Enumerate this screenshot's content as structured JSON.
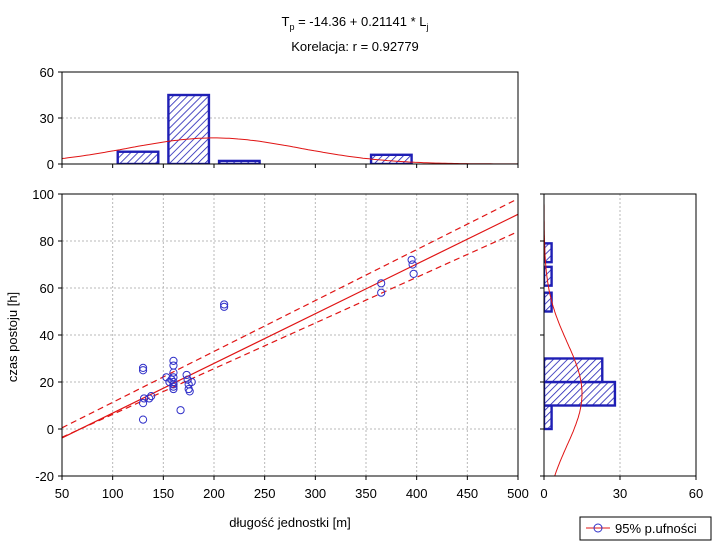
{
  "chart_data": {
    "type": "scatter",
    "title_line1": {
      "prefix": "T",
      "prefix_sub": "p",
      "body": " = -14.36 + 0.21141 * L",
      "body_sub": "j"
    },
    "title_line2": "Korelacja: r =   0.92779",
    "xlabel": "długość jednostki [m]",
    "ylabel": "czas postoju [h]",
    "xlim": [
      50,
      500
    ],
    "ylim": [
      -20,
      100
    ],
    "xticks": [
      50,
      100,
      150,
      200,
      250,
      300,
      350,
      400,
      450,
      500
    ],
    "yticks": [
      -20,
      0,
      20,
      40,
      60,
      80,
      100
    ],
    "grid": true,
    "regression": {
      "intercept": -14.36,
      "slope": 0.21141
    },
    "confidence_band": {
      "label": "95% p.ufności",
      "lower_at_50": -3.5,
      "upper_at_50": 0.5,
      "lower_at_500": 84,
      "upper_at_500": 98
    },
    "points": [
      {
        "x": 130,
        "y": 26
      },
      {
        "x": 130,
        "y": 25
      },
      {
        "x": 131,
        "y": 13
      },
      {
        "x": 130,
        "y": 11
      },
      {
        "x": 130,
        "y": 4
      },
      {
        "x": 138,
        "y": 14
      },
      {
        "x": 136,
        "y": 13
      },
      {
        "x": 153,
        "y": 22
      },
      {
        "x": 156,
        "y": 20
      },
      {
        "x": 158,
        "y": 21
      },
      {
        "x": 160,
        "y": 29
      },
      {
        "x": 160,
        "y": 27
      },
      {
        "x": 160,
        "y": 24
      },
      {
        "x": 160,
        "y": 22
      },
      {
        "x": 160,
        "y": 20
      },
      {
        "x": 160,
        "y": 19
      },
      {
        "x": 160,
        "y": 18
      },
      {
        "x": 160,
        "y": 17
      },
      {
        "x": 167,
        "y": 8
      },
      {
        "x": 173,
        "y": 23
      },
      {
        "x": 174,
        "y": 21
      },
      {
        "x": 175,
        "y": 19
      },
      {
        "x": 175,
        "y": 17
      },
      {
        "x": 176,
        "y": 16
      },
      {
        "x": 178,
        "y": 20
      },
      {
        "x": 210,
        "y": 53
      },
      {
        "x": 210,
        "y": 52
      },
      {
        "x": 365,
        "y": 62
      },
      {
        "x": 365,
        "y": 58
      },
      {
        "x": 395,
        "y": 72
      },
      {
        "x": 396,
        "y": 70
      },
      {
        "x": 397,
        "y": 66
      }
    ],
    "top_histogram": {
      "ylim": [
        0,
        60
      ],
      "yticks": [
        0,
        30,
        60
      ],
      "bins": [
        {
          "from": 105,
          "to": 145,
          "count": 8
        },
        {
          "from": 155,
          "to": 195,
          "count": 45
        },
        {
          "from": 205,
          "to": 245,
          "count": 2
        },
        {
          "from": 355,
          "to": 395,
          "count": 6
        }
      ],
      "normal_curve": {
        "mean": 200,
        "sd": 85,
        "peak": 17
      }
    },
    "right_histogram": {
      "xlim": [
        0,
        60
      ],
      "xticks": [
        0,
        30,
        60
      ],
      "bins": [
        {
          "from": 0,
          "to": 10,
          "count": 3
        },
        {
          "from": 10,
          "to": 20,
          "count": 28
        },
        {
          "from": 20,
          "to": 30,
          "count": 23
        },
        {
          "from": 50,
          "to": 58,
          "count": 3
        },
        {
          "from": 61,
          "to": 69,
          "count": 3
        },
        {
          "from": 71,
          "to": 79,
          "count": 3
        }
      ],
      "normal_curve": {
        "mean": 15,
        "sd": 22,
        "peak": 15
      }
    },
    "colors": {
      "bar_stroke": "#1f1fb5",
      "bar_fill": "#ffffff",
      "hatch": "#1f1fb5",
      "point": "#2f2fc8",
      "line": "#e01414",
      "grid": "#b8b8b8",
      "frame": "#000000"
    }
  },
  "legend": {
    "label": "95% p.ufności"
  }
}
